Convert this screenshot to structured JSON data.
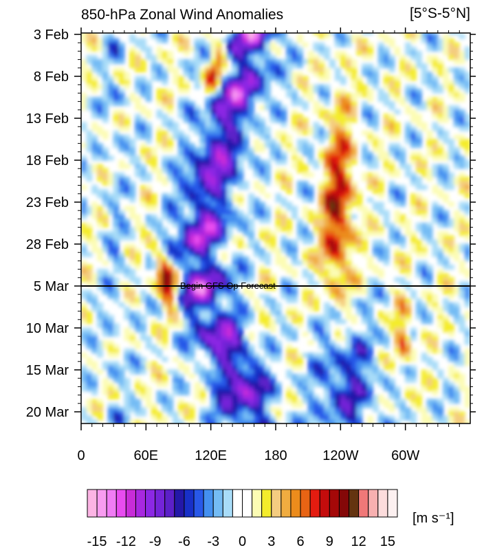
{
  "chart_data": {
    "type": "heatmap",
    "title": "850-hPa Zonal Wind Anomalies",
    "region": "[5°S-5°N]",
    "xlabel": "",
    "ylabel": "",
    "x_ticks": [
      {
        "label": "0",
        "lon": 0
      },
      {
        "label": "60E",
        "lon": 60
      },
      {
        "label": "120E",
        "lon": 120
      },
      {
        "label": "180",
        "lon": 180
      },
      {
        "label": "120W",
        "lon": 240
      },
      {
        "label": "60W",
        "lon": 300
      }
    ],
    "x_range": [
      0,
      360
    ],
    "y_ticks": [
      {
        "label": "3 Feb",
        "day": 0
      },
      {
        "label": "8 Feb",
        "day": 5
      },
      {
        "label": "13 Feb",
        "day": 10
      },
      {
        "label": "18 Feb",
        "day": 15
      },
      {
        "label": "23 Feb",
        "day": 20
      },
      {
        "label": "28 Feb",
        "day": 25
      },
      {
        "label": "5 Mar",
        "day": 30
      },
      {
        "label": "10 Mar",
        "day": 35
      },
      {
        "label": "15 Mar",
        "day": 40
      },
      {
        "label": "20 Mar",
        "day": 45
      }
    ],
    "y_range": [
      0,
      46
    ],
    "forecast_line": {
      "day": 30,
      "label": "Begin GFS Op Forecast"
    },
    "units": "[m s⁻¹]",
    "colorbar": {
      "levels": [
        -15,
        -14,
        -13,
        -12,
        -11,
        -10,
        -9,
        -8,
        -7,
        -6,
        -5,
        -4,
        -3,
        -2,
        -1,
        0,
        1,
        2,
        3,
        4,
        5,
        6,
        7,
        8,
        9,
        10,
        11,
        12,
        13,
        14,
        15
      ],
      "labels": [
        {
          "text": "-15",
          "value": -15
        },
        {
          "text": "-12",
          "value": -12
        },
        {
          "text": "-9",
          "value": -9
        },
        {
          "text": "-6",
          "value": -6
        },
        {
          "text": "-3",
          "value": -3
        },
        {
          "text": "0",
          "value": 0
        },
        {
          "text": "3",
          "value": 3
        },
        {
          "text": "6",
          "value": 6
        },
        {
          "text": "9",
          "value": 9
        },
        {
          "text": "12",
          "value": 12
        },
        {
          "text": "15",
          "value": 15
        }
      ],
      "colors": [
        "#fcb4e4",
        "#f89cf0",
        "#f07cf4",
        "#e84cf0",
        "#c82cd8",
        "#a828e0",
        "#8c28e4",
        "#7424d8",
        "#5c20c8",
        "#2418a8",
        "#1830c8",
        "#2858e8",
        "#4490f0",
        "#74bcf4",
        "#a8dcf8",
        "#ffffff",
        "#ffffff",
        "#fcfcb4",
        "#f4ec2c",
        "#f4cc80",
        "#f0ac40",
        "#ec8c1c",
        "#e86414",
        "#e41c10",
        "#c40c0c",
        "#a40808",
        "#840808",
        "#643410",
        "#f07878",
        "#f8b0b0",
        "#fcdcdc",
        "#fcf0f0"
      ]
    },
    "features": [
      {
        "sign": "negative",
        "description": "eastward-propagating easterly band",
        "path_lon": [
          160,
          150,
          130,
          120,
          112,
          110,
          120,
          145,
          155
        ],
        "path_day": [
          0,
          5,
          12,
          18,
          22,
          28,
          34,
          40,
          46
        ],
        "peak": -11
      },
      {
        "sign": "positive",
        "description": "westerly band east Pacific",
        "path_lon": [
          240,
          240,
          238,
          236,
          238
        ],
        "path_day": [
          10,
          15,
          20,
          26,
          31
        ],
        "peak": 9
      },
      {
        "sign": "positive",
        "description": "westerly burst Indian Ocean",
        "path_lon": [
          72,
          78,
          85
        ],
        "path_day": [
          26,
          29,
          33
        ],
        "peak": 12
      }
    ]
  }
}
